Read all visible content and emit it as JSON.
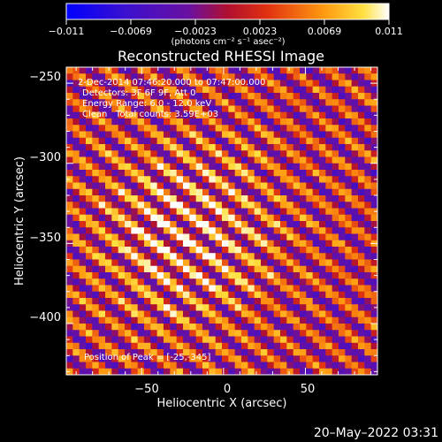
{
  "chart_data": {
    "type": "heatmap",
    "title": "Reconstructed RHESSI Image",
    "xlabel": "Heliocentric X (arcsec)",
    "ylabel": "Heliocentric Y (arcsec)",
    "xlim": [
      -96,
      94
    ],
    "ylim": [
      -432,
      -240
    ],
    "x_ticks": [
      -50,
      0,
      50
    ],
    "y_ticks": [
      -250,
      -300,
      -350,
      -400
    ],
    "colorbar": {
      "ticks": [
        "−0.011",
        "−0.0069",
        "−0.0023",
        "0.0023",
        "0.0069",
        "0.011"
      ],
      "unit": "(photons cm⁻² s⁻¹ asec⁻²)",
      "range": [
        -0.011,
        0.011
      ]
    },
    "annotations": {
      "time_range": "2-Dec-2014 07:46:20.000 to 07:47:00.000",
      "detectors": "Detectors: 3F 6F 9F, Att 0",
      "energy": "Energy Range: 6.0 - 12.0 keV",
      "clean": "Clean   Total counts: 3.59E+03",
      "peak": "Position of Peak = [-25,-345]"
    },
    "peak_position": [
      -25,
      -345
    ],
    "stripe_orientation": "diagonal, upper-left to lower-right",
    "colormap": "blue-purple-red-orange-yellow-white"
  },
  "footer": {
    "timestamp": "20–May–2022 03:31"
  }
}
